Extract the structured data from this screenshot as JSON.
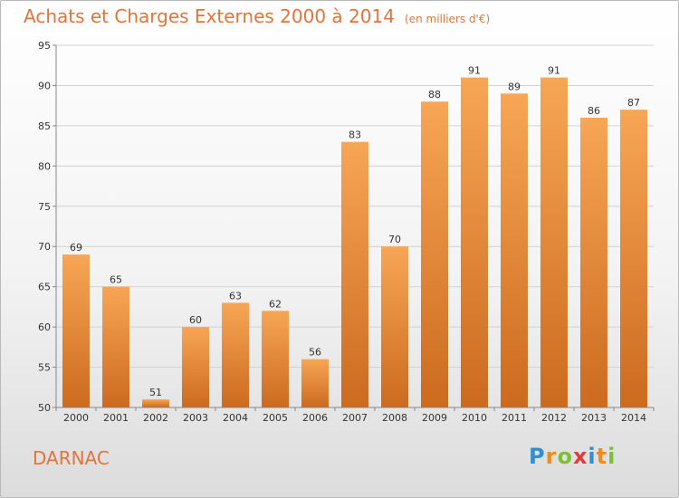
{
  "title": "Achats et Charges Externes 2000 à 2014",
  "subtitle": "(en milliers d'€)",
  "commune": "DARNAC",
  "logo": {
    "letters": [
      "P",
      "r",
      "o",
      "x",
      "i",
      "t",
      "i"
    ],
    "colors": [
      "#2e8fd1",
      "#f08c1b",
      "#7bbf3a",
      "#e23b3b",
      "#2e8fd1",
      "#f08c1b",
      "#7bbf3a"
    ]
  },
  "colors": {
    "bar_top": "#f7a655",
    "bar_bottom": "#cc6a1e",
    "accent": "#e2743a"
  },
  "chart_data": {
    "type": "bar",
    "categories": [
      "2000",
      "2001",
      "2002",
      "2003",
      "2004",
      "2005",
      "2006",
      "2007",
      "2008",
      "2009",
      "2010",
      "2011",
      "2012",
      "2013",
      "2014"
    ],
    "values": [
      69,
      65,
      51,
      60,
      63,
      62,
      56,
      83,
      70,
      88,
      91,
      89,
      91,
      86,
      87
    ],
    "ylim": [
      50,
      95
    ],
    "yticks": [
      50,
      55,
      60,
      65,
      70,
      75,
      80,
      85,
      90,
      95
    ],
    "grid": true
  }
}
